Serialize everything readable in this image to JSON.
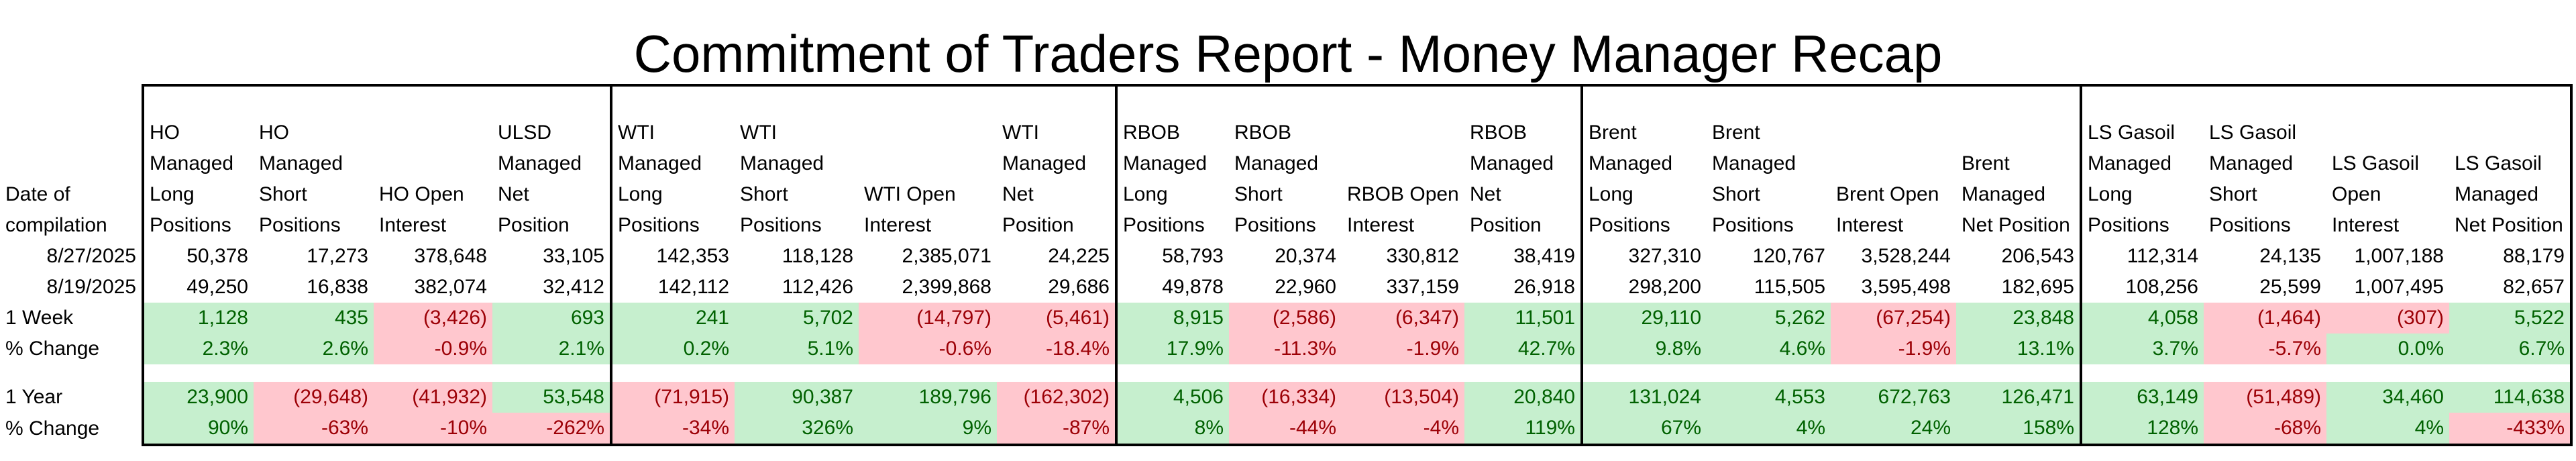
{
  "title": "Commitment of Traders Report - Money Manager Recap",
  "date_header": "Date of compilation",
  "groups": [
    {
      "name": "HO",
      "columns": [
        "HO Managed Long Positions",
        "HO Managed Short Positions",
        "HO Open Interest",
        "ULSD Managed Net Position"
      ],
      "date1": [
        "50,378",
        "17,273",
        "378,648",
        "33,105"
      ],
      "date2": [
        "49,250",
        "16,838",
        "382,074",
        "32,412"
      ],
      "week_change": [
        "1,128",
        "435",
        "(3,426)",
        "693"
      ],
      "week_pct": [
        "2.3%",
        "2.6%",
        "-0.9%",
        "2.1%"
      ],
      "year_change": [
        "23,900",
        "(29,648)",
        "(41,932)",
        "53,548"
      ],
      "year_pct": [
        "90%",
        "-63%",
        "-10%",
        "-262%"
      ]
    },
    {
      "name": "WTI",
      "columns": [
        "WTI Managed Long Positions",
        "WTI Managed Short Positions",
        "WTI Open Interest",
        "WTI Managed Net Position"
      ],
      "date1": [
        "142,353",
        "118,128",
        "2,385,071",
        "24,225"
      ],
      "date2": [
        "142,112",
        "112,426",
        "2,399,868",
        "29,686"
      ],
      "week_change": [
        "241",
        "5,702",
        "(14,797)",
        "(5,461)"
      ],
      "week_pct": [
        "0.2%",
        "5.1%",
        "-0.6%",
        "-18.4%"
      ],
      "year_change": [
        "(71,915)",
        "90,387",
        "189,796",
        "(162,302)"
      ],
      "year_pct": [
        "-34%",
        "326%",
        "9%",
        "-87%"
      ]
    },
    {
      "name": "RBOB",
      "columns": [
        "RBOB Managed Long Positions",
        "RBOB Managed Short Positions",
        "RBOB Open Interest",
        "RBOB Managed Net Position"
      ],
      "date1": [
        "58,793",
        "20,374",
        "330,812",
        "38,419"
      ],
      "date2": [
        "49,878",
        "22,960",
        "337,159",
        "26,918"
      ],
      "week_change": [
        "8,915",
        "(2,586)",
        "(6,347)",
        "11,501"
      ],
      "week_pct": [
        "17.9%",
        "-11.3%",
        "-1.9%",
        "42.7%"
      ],
      "year_change": [
        "4,506",
        "(16,334)",
        "(13,504)",
        "20,840"
      ],
      "year_pct": [
        "8%",
        "-44%",
        "-4%",
        "119%"
      ]
    },
    {
      "name": "Brent",
      "columns": [
        "Brent Managed Long Positions",
        "Brent Managed Short Positions",
        "Brent Open Interest",
        "Brent Managed Net Position"
      ],
      "date1": [
        "327,310",
        "120,767",
        "3,528,244",
        "206,543"
      ],
      "date2": [
        "298,200",
        "115,505",
        "3,595,498",
        "182,695"
      ],
      "week_change": [
        "29,110",
        "5,262",
        "(67,254)",
        "23,848"
      ],
      "week_pct": [
        "9.8%",
        "4.6%",
        "-1.9%",
        "13.1%"
      ],
      "year_change": [
        "131,024",
        "4,553",
        "672,763",
        "126,471"
      ],
      "year_pct": [
        "67%",
        "4%",
        "24%",
        "158%"
      ]
    },
    {
      "name": "LS Gasoil",
      "columns": [
        "LS Gasoil Managed Long Positions",
        "LS Gasoil Managed Short Positions",
        "LS Gasoil Open Interest",
        "LS Gasoil Managed Net Position"
      ],
      "date1": [
        "112,314",
        "24,135",
        "1,007,188",
        "88,179"
      ],
      "date2": [
        "108,256",
        "25,599",
        "1,007,495",
        "82,657"
      ],
      "week_change": [
        "4,058",
        "(1,464)",
        "(307)",
        "5,522"
      ],
      "week_pct": [
        "3.7%",
        "-5.7%",
        "0.0%",
        "6.7%"
      ],
      "year_change": [
        "63,149",
        "(51,489)",
        "34,460",
        "114,638"
      ],
      "year_pct": [
        "128%",
        "-68%",
        "4%",
        "-433%"
      ]
    }
  ],
  "rows": {
    "date1": "8/27/2025",
    "date2": "8/19/2025",
    "week_change": "1 Week",
    "week_pct": "% Change",
    "year_change": "1 Year",
    "year_pct": "% Change"
  },
  "colors": {
    "positive_fill": "#c6efce",
    "positive_text": "#006100",
    "negative_fill": "#ffc7ce",
    "negative_text": "#9c0006",
    "border": "#000000"
  }
}
